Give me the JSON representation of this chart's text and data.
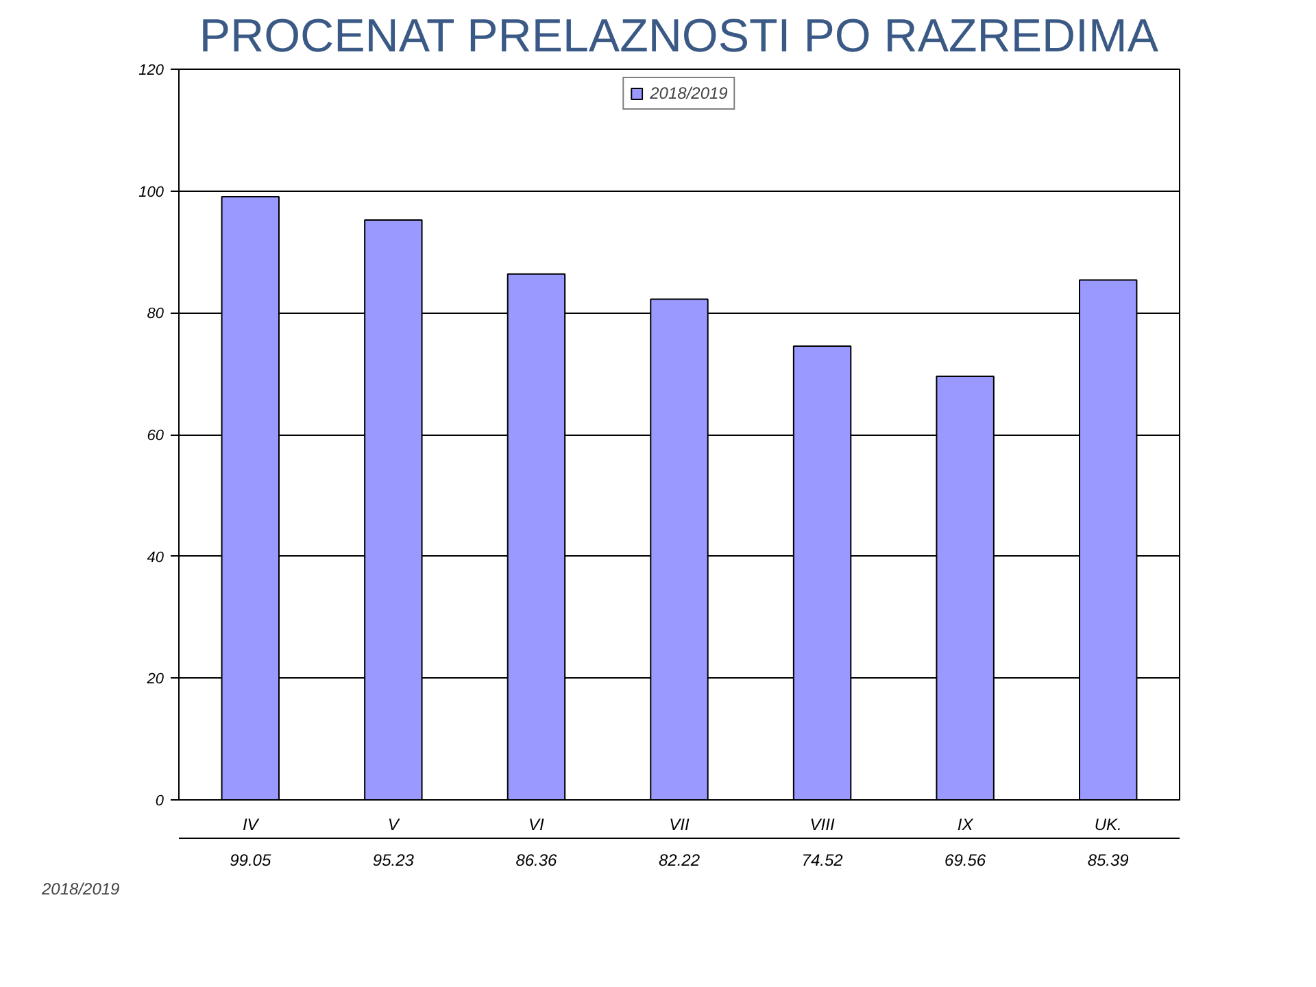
{
  "chart_data": {
    "type": "bar",
    "title": "PROCENAT PRELAZNOSTI PO RAZREDIMA",
    "categories": [
      "IV",
      "V",
      "VI",
      "VII",
      "VIII",
      "IX",
      "UK."
    ],
    "series": [
      {
        "name": "2018/2019",
        "color": "#9999ff",
        "values": [
          99.05,
          95.23,
          86.36,
          82.22,
          74.52,
          69.56,
          85.39
        ]
      }
    ],
    "ylim": [
      0,
      120
    ],
    "yticks": [
      0,
      20,
      40,
      60,
      80,
      100,
      120
    ],
    "grid": "y",
    "legend": "top",
    "data_labels": true
  }
}
